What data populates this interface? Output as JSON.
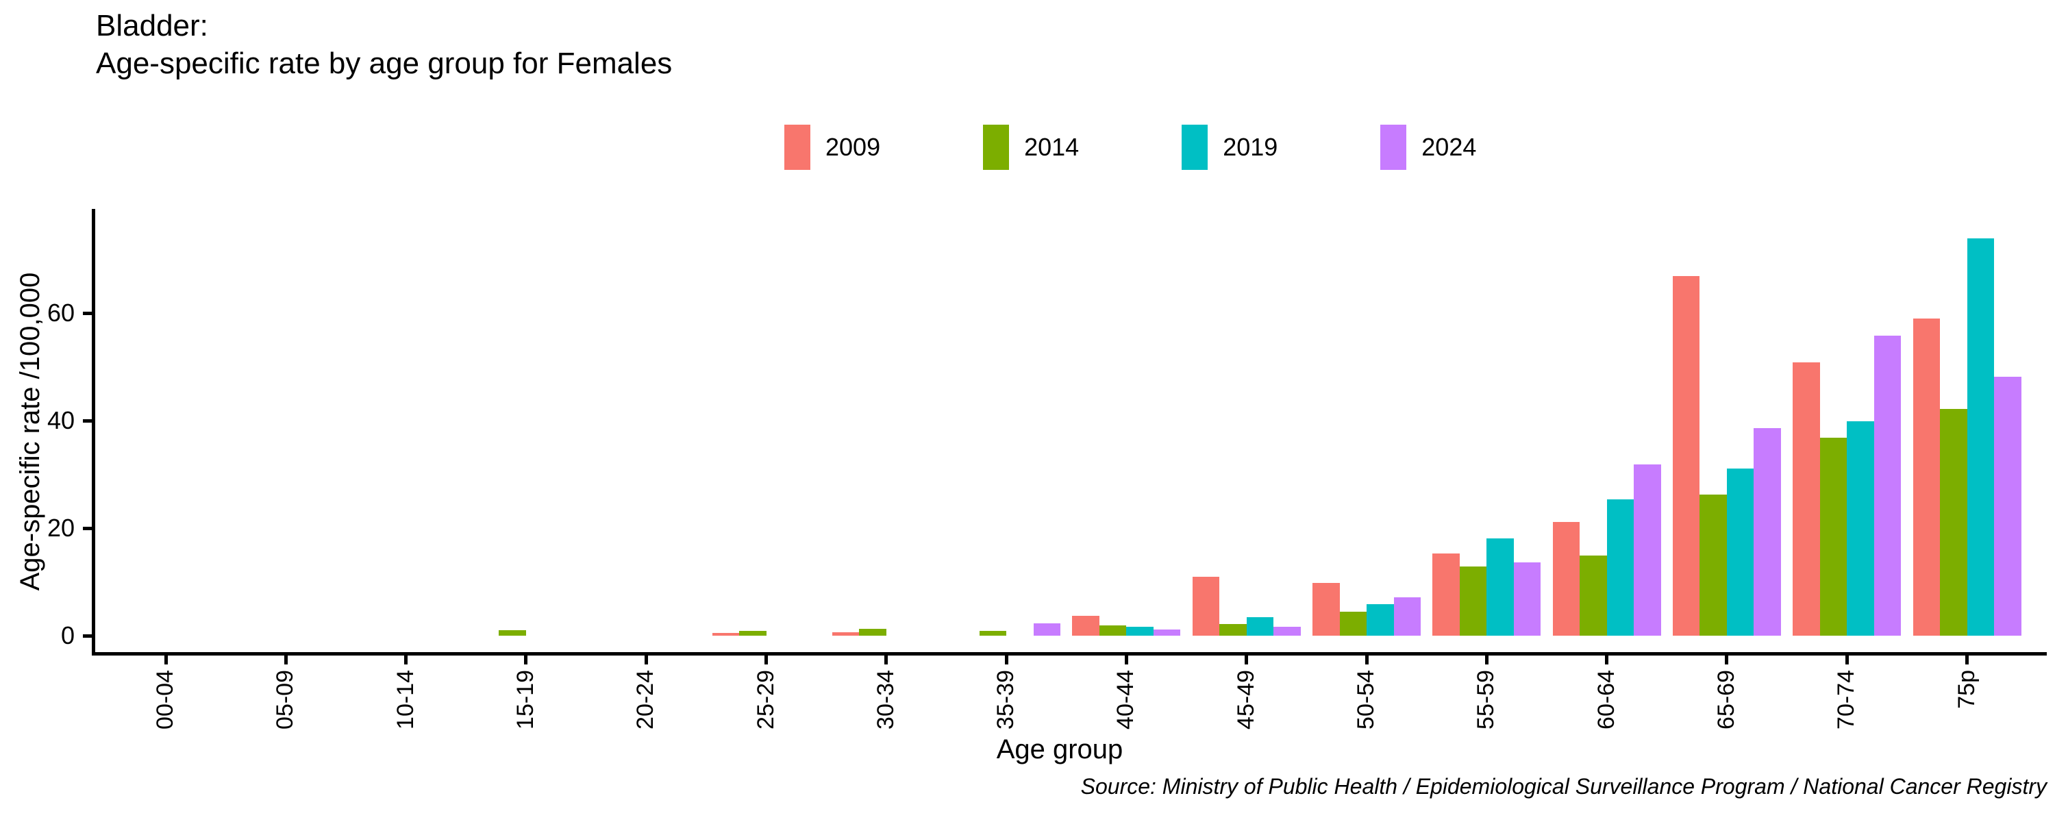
{
  "title_line1": "Bladder:",
  "title_line2": "Age-specific rate by age group for Females",
  "source_text": "Source: Ministry of Public Health / Epidemiological Surveillance Program / National Cancer Registry",
  "chart_data": {
    "type": "bar",
    "title": "Bladder: Age-specific rate by age group for Females",
    "xlabel": "Age group",
    "ylabel": "Age-specific rate /100,000",
    "yticks": [
      0,
      20,
      40,
      60
    ],
    "ylim": [
      0,
      79
    ],
    "grid": false,
    "legend_position": "top-center",
    "categories": [
      "00-04",
      "05-09",
      "10-14",
      "15-19",
      "20-24",
      "25-29",
      "30-34",
      "35-39",
      "40-44",
      "45-49",
      "50-54",
      "55-59",
      "60-64",
      "65-69",
      "70-74",
      "75p"
    ],
    "series": [
      {
        "name": "2009",
        "color": "#F8766D",
        "values": [
          0,
          0,
          0,
          0,
          0,
          0.5,
          0.6,
          0,
          3.7,
          11.0,
          9.8,
          15.3,
          21.1,
          66.9,
          50.8,
          59.0
        ]
      },
      {
        "name": "2014",
        "color": "#7CAE00",
        "values": [
          0,
          0,
          0,
          1.0,
          0,
          0.9,
          1.3,
          0.9,
          1.9,
          2.2,
          4.5,
          12.9,
          14.9,
          26.3,
          36.8,
          42.2
        ]
      },
      {
        "name": "2019",
        "color": "#00BFC4",
        "values": [
          0,
          0,
          0,
          0,
          0,
          0,
          0,
          0,
          1.6,
          3.5,
          5.8,
          18.1,
          25.4,
          31.1,
          39.9,
          73.9
        ]
      },
      {
        "name": "2024",
        "color": "#C77CFF",
        "values": [
          0,
          0,
          0,
          0,
          0,
          0,
          0,
          2.3,
          1.2,
          1.7,
          7.1,
          13.6,
          31.9,
          38.6,
          55.8,
          48.2
        ]
      }
    ]
  }
}
